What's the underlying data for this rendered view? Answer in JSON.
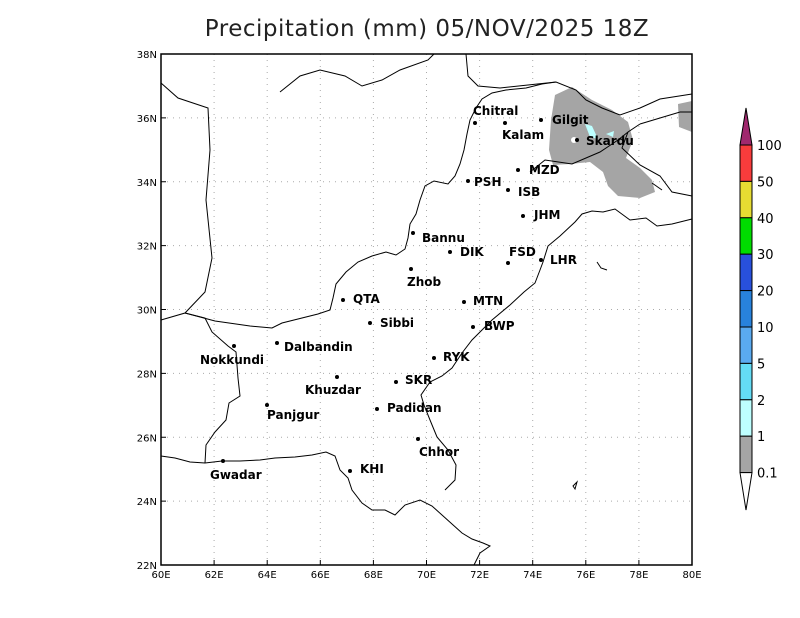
{
  "title": "Precipitation (mm) 05/NOV/2025 18Z",
  "axes": {
    "lon_ticks": [
      "60E",
      "62E",
      "64E",
      "66E",
      "68E",
      "70E",
      "72E",
      "74E",
      "76E",
      "78E",
      "80E"
    ],
    "lat_ticks": [
      "38N",
      "36N",
      "34N",
      "32N",
      "30N",
      "28N",
      "26N",
      "24N",
      "22N"
    ]
  },
  "cities": [
    "Chitral",
    "Kalam",
    "Gilgit",
    "Skardu",
    "MZD",
    "PSH",
    "ISB",
    "JHM",
    "Bannu",
    "DIK",
    "FSD",
    "LHR",
    "Zhob",
    "QTA",
    "MTN",
    "Sibbi",
    "BWP",
    "Nokkundi",
    "Dalbandin",
    "RYK",
    "Khuzdar",
    "SKR",
    "Padidan",
    "Panjgur",
    "Chhor",
    "KHI",
    "Gwadar"
  ],
  "colorbar": {
    "labels": [
      "100",
      "50",
      "40",
      "30",
      "20",
      "10",
      "5",
      "2",
      "1",
      "0.1"
    ],
    "colors": [
      "#a0286e",
      "#f83c3c",
      "#e6dc32",
      "#00dc00",
      "#2850dc",
      "#2882dc",
      "#5aaaf0",
      "#64dcf5",
      "#beffff",
      "#a5a5a5",
      "#ffffff"
    ]
  },
  "precip_colors": {
    "light": "#a5a5a5",
    "moderate": "#beffff"
  }
}
